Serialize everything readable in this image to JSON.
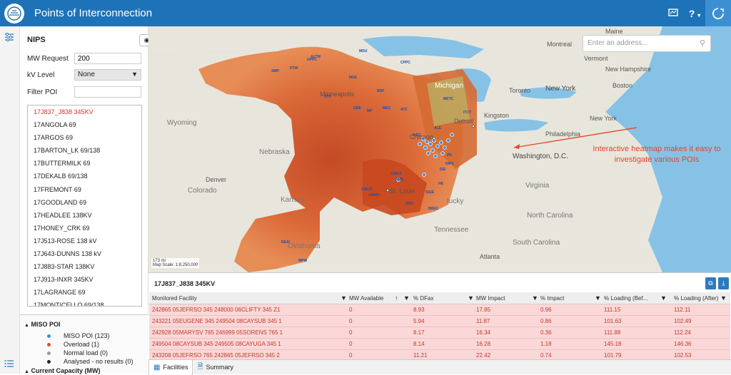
{
  "header": {
    "title": "Points of Interconnection",
    "icons": [
      "chart-icon",
      "help-icon",
      "user-icon"
    ],
    "help_label": "?",
    "help_caret": "▾",
    "color": "#1e73b8"
  },
  "panel": {
    "title": "NIPS",
    "eye_label": "◉ ▾",
    "mw_request_label": "MW Request",
    "mw_request_value": "200",
    "kv_level_label": "kV Level",
    "kv_level_value": "None",
    "filter_poi_label": "Filter POI",
    "filter_poi_value": "",
    "poi_items": [
      "17J837_J838 345KV",
      "17ANGOLA 69",
      "17ARGOS 69",
      "17BARTON_LK 69/138",
      "17BUTTERMILK 69",
      "17DEKALB 69/138",
      "17FREMONT 69",
      "17GOODLAND 69",
      "17HEADLEE 138KV",
      "17HONEY_CRK 69",
      "17J513-ROSE 138 kV",
      "17J643-DUNNS 138 kV",
      "17J883-STAR 138KV",
      "17J913-INXR 345KV",
      "17LAGRANGE 69",
      "17MONTICELLO 69/138"
    ]
  },
  "legend": {
    "title": "MISO POI",
    "items": [
      {
        "label": "MISO POI (123)",
        "color": "#3a8fd8"
      },
      {
        "label": "Overload (1)",
        "color": "#e24a3a"
      },
      {
        "label": "Normal load (0)",
        "color": "#9a9a9a"
      },
      {
        "label": "Analysed - no results (0)",
        "color": "#222222"
      }
    ],
    "footer": "Current Capacity (MW)"
  },
  "map": {
    "search_placeholder": "Enter an address...",
    "annotation": "Interactive heatmap makes it easy to investigate various POIs",
    "scale_text": "173 mi",
    "scale_label": "Map Scale: 1:8,250,000",
    "places": {
      "wyoming": "Wyoming",
      "nebraska": "Nebraska",
      "colorado": "Colorado",
      "kansas": "Kansas",
      "oklahoma": "Oklahoma",
      "denver": "Denver",
      "minneapolis": "Minneapolis",
      "chicago": "Chicago",
      "detroit": "Detroit",
      "st_louis": "St. Louis",
      "michigan": "Michigan",
      "toronto": "Toronto",
      "montreal": "Montreal",
      "boston": "Boston",
      "new_york": "New York",
      "new_york_state": "New York",
      "philadelphia": "Philadelphia",
      "washington": "Washington, D.C.",
      "virginia": "Virginia",
      "north_carolina": "North Carolina",
      "south_carolina": "South Carolina",
      "tennessee": "Tennessee",
      "kentucky": "tucky",
      "atlanta": "Atlanta",
      "maine": "Maine",
      "vermont": "Vermont",
      "new_hampshire": "New Hampshire",
      "kingston": "Kingston"
    },
    "poi_codes": [
      "DTW",
      "ALTW",
      "CPPC",
      "MGE",
      "MDU",
      "NSP",
      "MEC",
      "ATC",
      "ITCT",
      "METC",
      "WEC",
      "ALE",
      "CWLP",
      "AMIL",
      "SIGE",
      "HE",
      "DEI",
      "IPL",
      "NIPS",
      "CWLD",
      "AMMO",
      "SIPC",
      "BREC",
      "UPPC",
      "SMP",
      "OTP",
      "GRE",
      "MP",
      "BEAI",
      "MPW"
    ]
  },
  "grid": {
    "title": "17J837_J838 345KV",
    "columns": [
      "Monitored Facility",
      "MW Available",
      "% DFax",
      "MW Impact",
      "% Impact",
      "% Loading (Bef...",
      "% Loading (After)"
    ],
    "sort_indicator": "↑",
    "filter_icon": "▼",
    "rows": [
      [
        "242865 05JEFRSO 345 248000 06CLIFTY 345 Z1",
        "0",
        "8.93",
        "17.85",
        "0.96",
        "111.15",
        "112.11"
      ],
      [
        "243221 05EUGENE 345 249504 08CAYSUB 345 1",
        "0",
        "5.94",
        "11.87",
        "0.86",
        "101.63",
        "102.49"
      ],
      [
        "242928 05MARYSV 765 246999 05SORENS 765 1",
        "0",
        "8.17",
        "16.34",
        "0.36",
        "111.88",
        "112.24"
      ],
      [
        "249504 08CAYSUB 345 249505 08CAYUGA 345 1",
        "0",
        "8.14",
        "16.28",
        "1.18",
        "145.18",
        "146.36"
      ],
      [
        "243208 05JEFRSO 765 242865 05JEFRSO 345 2",
        "0",
        "11.21",
        "22.42",
        "0.74",
        "101.79",
        "102.53"
      ]
    ],
    "tabs": [
      "Facilities",
      "Summary"
    ],
    "row_color": "#fbd7d7",
    "row_text_color": "#c0392b"
  }
}
